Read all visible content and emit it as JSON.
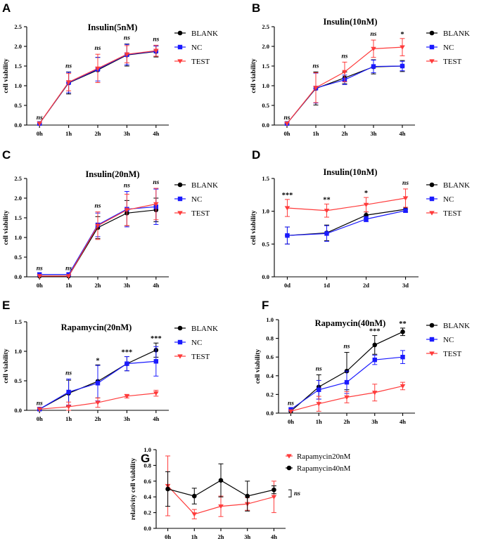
{
  "colors": {
    "BLANK": "#000000",
    "NC": "#1a1aff",
    "TEST": "#ff3b3b",
    "Rapamycin20nM": "#ff3b3b",
    "Rapamycin40nM": "#000000"
  },
  "chart_data": [
    {
      "panel": "A",
      "type": "line",
      "title": "Insulin(5nM)",
      "xlabel": "",
      "ylabel": "cell viability",
      "categories": [
        "0h",
        "1h",
        "2h",
        "3h",
        "4h"
      ],
      "ylim": [
        0,
        2.5
      ],
      "yticks": [
        0,
        0.5,
        1,
        1.5,
        2,
        2.5
      ],
      "ytick_labels": [
        "0.0",
        "0.5",
        "1.0",
        "1.5",
        "2.0",
        "2.5"
      ],
      "legend_position": "right",
      "series": [
        {
          "name": "BLANK",
          "marker": "circle",
          "values": [
            0.04,
            1.07,
            1.4,
            1.78,
            1.87
          ],
          "errors": [
            0,
            0.28,
            0.32,
            0.28,
            0.14
          ]
        },
        {
          "name": "NC",
          "marker": "square",
          "values": [
            0.04,
            1.08,
            1.42,
            1.79,
            1.88
          ],
          "errors": [
            0,
            0.26,
            0.3,
            0.26,
            0.13
          ]
        },
        {
          "name": "TEST",
          "marker": "triangle-down",
          "values": [
            0.04,
            1.09,
            1.44,
            1.8,
            1.89
          ],
          "errors": [
            0,
            0.22,
            0.36,
            0.22,
            0.14
          ]
        }
      ],
      "annotations": [
        "ns",
        "ns",
        "ns",
        "ns",
        "ns"
      ]
    },
    {
      "panel": "B",
      "type": "line",
      "title": "Insulin(10nM)",
      "xlabel": "",
      "ylabel": "cell viability",
      "categories": [
        "0h",
        "1h",
        "2h",
        "3h",
        "4h"
      ],
      "ylim": [
        0,
        2.5
      ],
      "yticks": [
        0,
        0.5,
        1,
        1.5,
        2,
        2.5
      ],
      "ytick_labels": [
        "0.0",
        "0.5",
        "1.0",
        "1.5",
        "2.0",
        "2.5"
      ],
      "legend_position": "right",
      "series": [
        {
          "name": "BLANK",
          "marker": "circle",
          "values": [
            0.04,
            0.93,
            1.2,
            1.48,
            1.5
          ],
          "errors": [
            0,
            0.42,
            0.15,
            0.18,
            0.14
          ]
        },
        {
          "name": "NC",
          "marker": "square",
          "values": [
            0.04,
            0.94,
            1.15,
            1.49,
            1.5
          ],
          "errors": [
            0,
            0.38,
            0.12,
            0.16,
            0.12
          ]
        },
        {
          "name": "TEST",
          "marker": "triangle-down",
          "values": [
            0.04,
            0.95,
            1.35,
            1.94,
            1.98
          ],
          "errors": [
            0,
            0.38,
            0.25,
            0.22,
            0.22
          ]
        }
      ],
      "annotations": [
        "ns",
        "ns",
        "ns",
        "ns",
        "*"
      ]
    },
    {
      "panel": "C",
      "type": "line",
      "title": "Insulin(20nM)",
      "xlabel": "",
      "ylabel": "cell viability",
      "categories": [
        "0h",
        "1h",
        "2h",
        "3h",
        "4h"
      ],
      "ylim": [
        0,
        2.5
      ],
      "yticks": [
        0,
        0.5,
        1,
        1.5,
        2,
        2.5
      ],
      "ytick_labels": [
        "0.0",
        "0.5",
        "1.0",
        "1.5",
        "2.0",
        "2.5"
      ],
      "legend_position": "right",
      "series": [
        {
          "name": "BLANK",
          "marker": "circle",
          "values": [
            0.02,
            0.02,
            1.25,
            1.62,
            1.7
          ],
          "errors": [
            0,
            0,
            0.28,
            0.32,
            0.3
          ]
        },
        {
          "name": "NC",
          "marker": "square",
          "values": [
            0.06,
            0.06,
            1.32,
            1.72,
            1.78
          ],
          "errors": [
            0,
            0,
            0.3,
            0.45,
            0.45
          ]
        },
        {
          "name": "TEST",
          "marker": "triangle-down",
          "values": [
            0.02,
            0.02,
            1.3,
            1.7,
            1.85
          ],
          "errors": [
            0,
            0,
            0.35,
            0.4,
            0.4
          ]
        }
      ],
      "annotations": [
        "ns",
        "ns",
        "ns",
        "ns",
        "ns"
      ]
    },
    {
      "panel": "D",
      "type": "line",
      "title": "Insulin(10nM)",
      "xlabel": "",
      "ylabel": "cell viability",
      "categories": [
        "0d",
        "1d",
        "2d",
        "3d"
      ],
      "ylim": [
        0,
        1.5
      ],
      "yticks": [
        0,
        0.5,
        1,
        1.5
      ],
      "ytick_labels": [
        "0.0",
        "0.5",
        "1.0",
        "1.5"
      ],
      "legend_position": "right",
      "series": [
        {
          "name": "BLANK",
          "marker": "circle",
          "values": [
            0.63,
            0.67,
            0.94,
            1.03
          ],
          "errors": [
            0.13,
            0.12,
            0.05,
            0.03
          ]
        },
        {
          "name": "NC",
          "marker": "square",
          "values": [
            0.63,
            0.66,
            0.88,
            1.01
          ],
          "errors": [
            0.13,
            0.12,
            0.04,
            0.03
          ]
        },
        {
          "name": "TEST",
          "marker": "triangle-down",
          "values": [
            1.05,
            1.01,
            1.1,
            1.2
          ],
          "errors": [
            0.13,
            0.1,
            0.11,
            0.14
          ]
        }
      ],
      "annotations": [
        "***",
        "**",
        "*",
        "ns"
      ]
    },
    {
      "panel": "E",
      "type": "line",
      "title": "Rapamycin(20nM)",
      "xlabel": "",
      "ylabel": "cell viability",
      "categories": [
        "0h",
        "1h",
        "2h",
        "3h",
        "4h"
      ],
      "ylim": [
        0,
        1.5
      ],
      "yticks": [
        0,
        0.5,
        1,
        1.5
      ],
      "ytick_labels": [
        "0.0",
        "0.5",
        "1.0",
        "1.5"
      ],
      "legend_position": "right",
      "series": [
        {
          "name": "BLANK",
          "marker": "circle",
          "values": [
            0.02,
            0.29,
            0.49,
            0.79,
            1.02
          ],
          "errors": [
            0,
            0.22,
            0.28,
            0.12,
            0.12
          ]
        },
        {
          "name": "NC",
          "marker": "square",
          "values": [
            0.02,
            0.31,
            0.46,
            0.79,
            0.83
          ],
          "errors": [
            0,
            0.22,
            0.3,
            0.12,
            0.25
          ]
        },
        {
          "name": "TEST",
          "marker": "triangle-down",
          "values": [
            0.02,
            0.06,
            0.13,
            0.24,
            0.29
          ],
          "errors": [
            0,
            0.08,
            0.08,
            0.03,
            0.05
          ]
        }
      ],
      "annotations": [
        "ns",
        "ns",
        "*",
        "***",
        "***"
      ]
    },
    {
      "panel": "F",
      "type": "line",
      "title": "Rapamycin(40nM)",
      "xlabel": "",
      "ylabel": "cell viability",
      "categories": [
        "0h",
        "1h",
        "2h",
        "3h",
        "4h"
      ],
      "ylim": [
        0,
        1.0
      ],
      "yticks": [
        0,
        0.2,
        0.4,
        0.6,
        0.8,
        1.0
      ],
      "ytick_labels": [
        "0.0",
        "0.2",
        "0.4",
        "0.6",
        "0.8",
        "1.0"
      ],
      "legend_position": "right",
      "series": [
        {
          "name": "BLANK",
          "marker": "circle",
          "values": [
            0.02,
            0.28,
            0.45,
            0.73,
            0.87
          ],
          "errors": [
            0,
            0.13,
            0.2,
            0.1,
            0.04
          ]
        },
        {
          "name": "NC",
          "marker": "square",
          "values": [
            0.04,
            0.25,
            0.33,
            0.57,
            0.6
          ],
          "errors": [
            0,
            0.1,
            0.12,
            0.05,
            0.07
          ]
        },
        {
          "name": "TEST",
          "marker": "triangle-down",
          "values": [
            0.02,
            0.1,
            0.17,
            0.22,
            0.29
          ],
          "errors": [
            0,
            0.08,
            0.06,
            0.09,
            0.04
          ]
        }
      ],
      "annotations": [
        "ns",
        "ns",
        "ns",
        "***",
        "**"
      ]
    },
    {
      "panel": "G",
      "type": "line",
      "title": "",
      "xlabel": "",
      "ylabel": "relativity cell viability",
      "categories": [
        "0h",
        "1h",
        "2h",
        "3h",
        "4h"
      ],
      "ylim": [
        0,
        1.0
      ],
      "yticks": [
        0,
        0.2,
        0.4,
        0.6,
        0.8,
        1.0
      ],
      "ytick_labels": [
        "0.0",
        "0.2",
        "0.4",
        "0.6",
        "0.8",
        "1.0"
      ],
      "legend_position": "right",
      "series": [
        {
          "name": "Rapamycin20nM",
          "marker": "triangle-down",
          "values": [
            0.54,
            0.18,
            0.28,
            0.31,
            0.4
          ],
          "errors": [
            0.38,
            0.06,
            0.13,
            0.08,
            0.2
          ]
        },
        {
          "name": "Rapamycin40nM",
          "marker": "circle",
          "values": [
            0.5,
            0.41,
            0.61,
            0.41,
            0.49
          ],
          "errors": [
            0.22,
            0.1,
            0.21,
            0.19,
            0.05
          ]
        }
      ],
      "annotations": [],
      "bracket_label": "ns"
    }
  ]
}
